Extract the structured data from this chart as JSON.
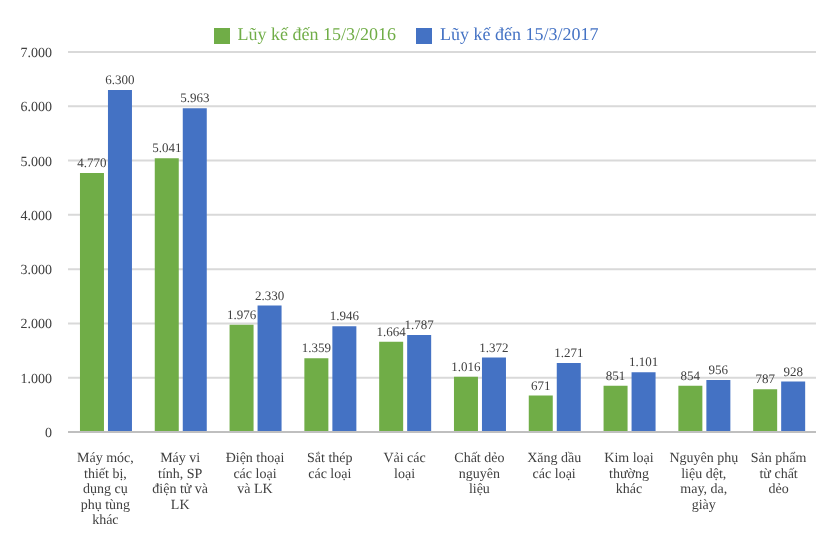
{
  "chart_data": {
    "type": "bar",
    "categories": [
      "Máy móc, thiết bị, dụng cụ phụ tùng khác",
      "Máy vi tính, SP điện tử và LK",
      "Điện thoại các loại và LK",
      "Sắt thép các loại",
      "Vải các loại",
      "Chất dẻo nguyên liệu",
      "Xăng dầu các loại",
      "Kim loại thường khác",
      "Nguyên phụ liệu dệt, may, da, giày",
      "Sản phẩm từ chất dẻo"
    ],
    "series": [
      {
        "name": "Lũy kế đến 15/3/2016",
        "color": "#70ad47",
        "values": [
          4770,
          5041,
          1976,
          1359,
          1664,
          1016,
          671,
          851,
          854,
          787
        ],
        "value_labels": [
          "4.770",
          "5.041",
          "1.976",
          "1.359",
          "1.664",
          "1.016",
          "671",
          "851",
          "854",
          "787"
        ]
      },
      {
        "name": "Lũy kế đến 15/3/2017",
        "color": "#4472c4",
        "values": [
          6300,
          5963,
          2330,
          1946,
          1787,
          1372,
          1271,
          1101,
          956,
          928
        ],
        "value_labels": [
          "6.300",
          "5.963",
          "2.330",
          "1.946",
          "1.787",
          "1.372",
          "1.271",
          "1.101",
          "956",
          "928"
        ]
      }
    ],
    "ylim": [
      0,
      7000
    ],
    "yticks": [
      0,
      {
        "value": 1000,
        "label": "1.000"
      },
      {
        "value": 2000,
        "label": "2.000"
      },
      {
        "value": 3000,
        "label": "3.000"
      },
      {
        "value": 4000,
        "label": "4.000"
      },
      {
        "value": 5000,
        "label": "5.000"
      },
      {
        "value": 6000,
        "label": "6.000"
      },
      {
        "value": 7000,
        "label": "7.000"
      }
    ],
    "grid": "y",
    "legend": "top"
  }
}
